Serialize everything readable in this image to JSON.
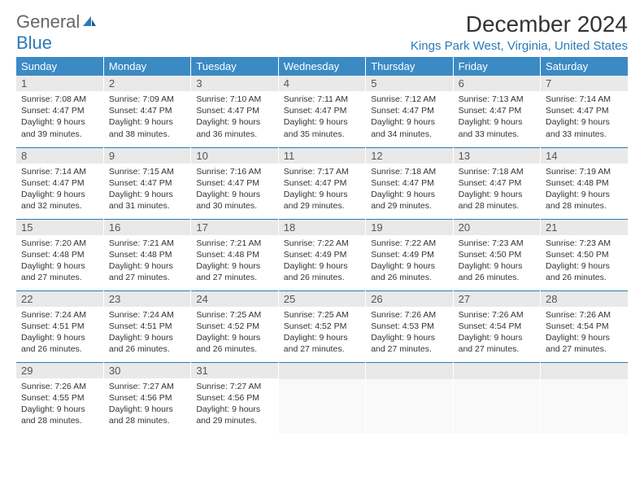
{
  "logo": {
    "text_general": "General",
    "text_blue": "Blue",
    "icon_color": "#2a7ab8"
  },
  "header": {
    "month_title": "December 2024",
    "location": "Kings Park West, Virginia, United States"
  },
  "colors": {
    "header_bg": "#3b8ac4",
    "header_text": "#ffffff",
    "accent": "#2a7ab8",
    "day_number_bg": "#e9e9e9",
    "text": "#333333"
  },
  "weekdays": [
    "Sunday",
    "Monday",
    "Tuesday",
    "Wednesday",
    "Thursday",
    "Friday",
    "Saturday"
  ],
  "days": [
    {
      "n": 1,
      "sunrise": "7:08 AM",
      "sunset": "4:47 PM",
      "daylight": "9 hours and 39 minutes."
    },
    {
      "n": 2,
      "sunrise": "7:09 AM",
      "sunset": "4:47 PM",
      "daylight": "9 hours and 38 minutes."
    },
    {
      "n": 3,
      "sunrise": "7:10 AM",
      "sunset": "4:47 PM",
      "daylight": "9 hours and 36 minutes."
    },
    {
      "n": 4,
      "sunrise": "7:11 AM",
      "sunset": "4:47 PM",
      "daylight": "9 hours and 35 minutes."
    },
    {
      "n": 5,
      "sunrise": "7:12 AM",
      "sunset": "4:47 PM",
      "daylight": "9 hours and 34 minutes."
    },
    {
      "n": 6,
      "sunrise": "7:13 AM",
      "sunset": "4:47 PM",
      "daylight": "9 hours and 33 minutes."
    },
    {
      "n": 7,
      "sunrise": "7:14 AM",
      "sunset": "4:47 PM",
      "daylight": "9 hours and 33 minutes."
    },
    {
      "n": 8,
      "sunrise": "7:14 AM",
      "sunset": "4:47 PM",
      "daylight": "9 hours and 32 minutes."
    },
    {
      "n": 9,
      "sunrise": "7:15 AM",
      "sunset": "4:47 PM",
      "daylight": "9 hours and 31 minutes."
    },
    {
      "n": 10,
      "sunrise": "7:16 AM",
      "sunset": "4:47 PM",
      "daylight": "9 hours and 30 minutes."
    },
    {
      "n": 11,
      "sunrise": "7:17 AM",
      "sunset": "4:47 PM",
      "daylight": "9 hours and 29 minutes."
    },
    {
      "n": 12,
      "sunrise": "7:18 AM",
      "sunset": "4:47 PM",
      "daylight": "9 hours and 29 minutes."
    },
    {
      "n": 13,
      "sunrise": "7:18 AM",
      "sunset": "4:47 PM",
      "daylight": "9 hours and 28 minutes."
    },
    {
      "n": 14,
      "sunrise": "7:19 AM",
      "sunset": "4:48 PM",
      "daylight": "9 hours and 28 minutes."
    },
    {
      "n": 15,
      "sunrise": "7:20 AM",
      "sunset": "4:48 PM",
      "daylight": "9 hours and 27 minutes."
    },
    {
      "n": 16,
      "sunrise": "7:21 AM",
      "sunset": "4:48 PM",
      "daylight": "9 hours and 27 minutes."
    },
    {
      "n": 17,
      "sunrise": "7:21 AM",
      "sunset": "4:48 PM",
      "daylight": "9 hours and 27 minutes."
    },
    {
      "n": 18,
      "sunrise": "7:22 AM",
      "sunset": "4:49 PM",
      "daylight": "9 hours and 26 minutes."
    },
    {
      "n": 19,
      "sunrise": "7:22 AM",
      "sunset": "4:49 PM",
      "daylight": "9 hours and 26 minutes."
    },
    {
      "n": 20,
      "sunrise": "7:23 AM",
      "sunset": "4:50 PM",
      "daylight": "9 hours and 26 minutes."
    },
    {
      "n": 21,
      "sunrise": "7:23 AM",
      "sunset": "4:50 PM",
      "daylight": "9 hours and 26 minutes."
    },
    {
      "n": 22,
      "sunrise": "7:24 AM",
      "sunset": "4:51 PM",
      "daylight": "9 hours and 26 minutes."
    },
    {
      "n": 23,
      "sunrise": "7:24 AM",
      "sunset": "4:51 PM",
      "daylight": "9 hours and 26 minutes."
    },
    {
      "n": 24,
      "sunrise": "7:25 AM",
      "sunset": "4:52 PM",
      "daylight": "9 hours and 26 minutes."
    },
    {
      "n": 25,
      "sunrise": "7:25 AM",
      "sunset": "4:52 PM",
      "daylight": "9 hours and 27 minutes."
    },
    {
      "n": 26,
      "sunrise": "7:26 AM",
      "sunset": "4:53 PM",
      "daylight": "9 hours and 27 minutes."
    },
    {
      "n": 27,
      "sunrise": "7:26 AM",
      "sunset": "4:54 PM",
      "daylight": "9 hours and 27 minutes."
    },
    {
      "n": 28,
      "sunrise": "7:26 AM",
      "sunset": "4:54 PM",
      "daylight": "9 hours and 27 minutes."
    },
    {
      "n": 29,
      "sunrise": "7:26 AM",
      "sunset": "4:55 PM",
      "daylight": "9 hours and 28 minutes."
    },
    {
      "n": 30,
      "sunrise": "7:27 AM",
      "sunset": "4:56 PM",
      "daylight": "9 hours and 28 minutes."
    },
    {
      "n": 31,
      "sunrise": "7:27 AM",
      "sunset": "4:56 PM",
      "daylight": "9 hours and 29 minutes."
    }
  ],
  "labels": {
    "sunrise_prefix": "Sunrise: ",
    "sunset_prefix": "Sunset: ",
    "daylight_prefix": "Daylight: "
  },
  "layout": {
    "first_day_column": 0,
    "trailing_empty": 4
  }
}
